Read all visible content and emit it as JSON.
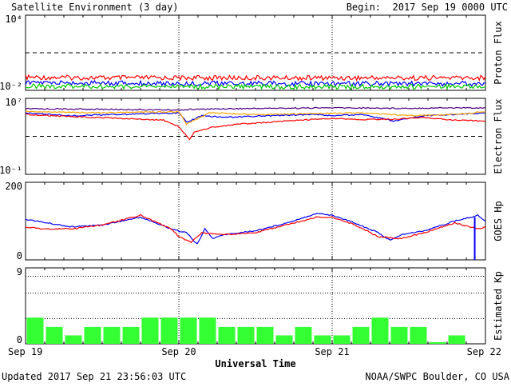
{
  "header": {
    "title": "Satellite Environment (3 day)",
    "begin_label": "Begin:",
    "begin_value": "2017 Sep 19 0000 UTC"
  },
  "footer": {
    "updated": "Updated 2017 Sep 21 23:56:03 UTC",
    "credit": "NOAA/SWPC Boulder, CO USA"
  },
  "colors": {
    "red": "#ff0000",
    "blue": "#0000ff",
    "green": "#00cc00",
    "orange": "#ffa500",
    "kp_bar": "#33ff33",
    "purple": "#4b0082"
  },
  "chart_data": [
    {
      "type": "line",
      "panel": "proton",
      "ylabel": "Proton Flux",
      "y_scale": "log",
      "ylim": [
        0.01,
        10000
      ],
      "tick_labels": [
        "10⁴",
        "10⁻²"
      ],
      "threshold": 10,
      "x_days": [
        0,
        3
      ],
      "series": [
        {
          "color": "red",
          "x": [
            0,
            0.5,
            1,
            1.5,
            2,
            2.5,
            3
          ],
          "y": [
            0.11,
            0.1,
            0.1,
            0.1,
            0.1,
            0.1,
            0.1
          ]
        },
        {
          "color": "blue",
          "x": [
            0,
            0.5,
            1,
            1.5,
            2,
            2.5,
            3
          ],
          "y": [
            0.04,
            0.038,
            0.036,
            0.035,
            0.035,
            0.034,
            0.034
          ]
        },
        {
          "color": "green",
          "x": [
            0,
            0.5,
            1,
            1.5,
            2,
            2.5,
            3
          ],
          "y": [
            0.022,
            0.02,
            0.02,
            0.02,
            0.019,
            0.02,
            0.02
          ]
        }
      ]
    },
    {
      "type": "line",
      "panel": "electron",
      "ylabel": "Electron Flux",
      "y_scale": "log",
      "ylim": [
        0.1,
        10000000
      ],
      "tick_labels": [
        "10⁷",
        "10⁻¹"
      ],
      "threshold": 1000,
      "x_days": [
        0,
        3
      ],
      "series": [
        {
          "color": "purple",
          "x": [
            0,
            0.5,
            1,
            1.1,
            1.3,
            1.6,
            2,
            2.5,
            2.7,
            3
          ],
          "y": [
            800000,
            700000,
            600000,
            700000,
            800000,
            900000,
            1000000,
            900000,
            1000000,
            1000000
          ]
        },
        {
          "color": "blue",
          "x": [
            0,
            0.3,
            0.6,
            1,
            1.05,
            1.15,
            1.3,
            1.6,
            1.9,
            2,
            2.2,
            2.4,
            2.6,
            2.8,
            3
          ],
          "y": [
            300000,
            150000,
            200000,
            300000,
            30000,
            150000,
            100000,
            150000,
            200000,
            150000,
            200000,
            40000,
            150000,
            200000,
            300000
          ]
        },
        {
          "color": "orange",
          "x": [
            0,
            0.5,
            1,
            1.05,
            1.2,
            1.5,
            1.9,
            2.2,
            2.5,
            2.8,
            3
          ],
          "y": [
            400000,
            300000,
            400000,
            20000,
            300000,
            200000,
            250000,
            300000,
            150000,
            200000,
            400000
          ]
        },
        {
          "color": "red",
          "x": [
            0,
            0.3,
            0.6,
            0.9,
            1,
            1.07,
            1.1,
            1.2,
            1.4,
            1.7,
            2,
            2.2,
            2.4,
            2.6,
            2.8,
            3
          ],
          "y": [
            200000,
            120000,
            80000,
            50000,
            10000,
            500,
            3000,
            8000,
            20000,
            40000,
            80000,
            60000,
            60000,
            100000,
            50000,
            40000
          ]
        }
      ]
    },
    {
      "type": "line",
      "panel": "hp",
      "ylabel": "GOES Hp",
      "y_scale": "linear",
      "ylim": [
        0,
        200
      ],
      "tick_labels": [
        "200",
        "0"
      ],
      "x_days": [
        0,
        3
      ],
      "series": [
        {
          "color": "blue",
          "x": [
            0,
            0.1,
            0.3,
            0.5,
            0.75,
            0.95,
            1.05,
            1.12,
            1.17,
            1.22,
            1.3,
            1.5,
            1.7,
            1.9,
            2.0,
            2.15,
            2.3,
            2.38,
            2.45,
            2.6,
            2.8,
            2.95,
            3
          ],
          "y": [
            105,
            98,
            85,
            90,
            110,
            80,
            70,
            40,
            80,
            55,
            65,
            75,
            95,
            120,
            115,
            95,
            70,
            50,
            65,
            75,
            100,
            115,
            100
          ]
        },
        {
          "color": "red",
          "x": [
            0,
            0.1,
            0.3,
            0.5,
            0.75,
            0.95,
            1.0,
            1.08,
            1.15,
            1.3,
            1.5,
            1.7,
            1.9,
            2.0,
            2.15,
            2.3,
            2.45,
            2.6,
            2.8,
            2.95,
            3
          ],
          "y": [
            85,
            80,
            80,
            90,
            115,
            80,
            60,
            45,
            70,
            65,
            70,
            90,
            110,
            110,
            90,
            60,
            55,
            70,
            95,
            80,
            85
          ]
        }
      ]
    },
    {
      "type": "bar",
      "panel": "kp",
      "ylabel": "Estimated Kp",
      "ylim": [
        0,
        9
      ],
      "tick_labels": [
        "9",
        "0"
      ],
      "values": [
        3.1,
        2.0,
        1.0,
        2.0,
        2.0,
        2.0,
        3.1,
        3.1,
        3.1,
        3.1,
        2.0,
        2.0,
        2.0,
        1.0,
        2.0,
        1.0,
        1.0,
        2.0,
        3.1,
        2.0,
        2.0,
        0.2,
        1.0,
        0.0
      ]
    }
  ],
  "x_axis": {
    "labels": [
      "Sep 19",
      "Sep 20",
      "Sep 21",
      "Sep 22"
    ],
    "title": "Universal Time"
  }
}
